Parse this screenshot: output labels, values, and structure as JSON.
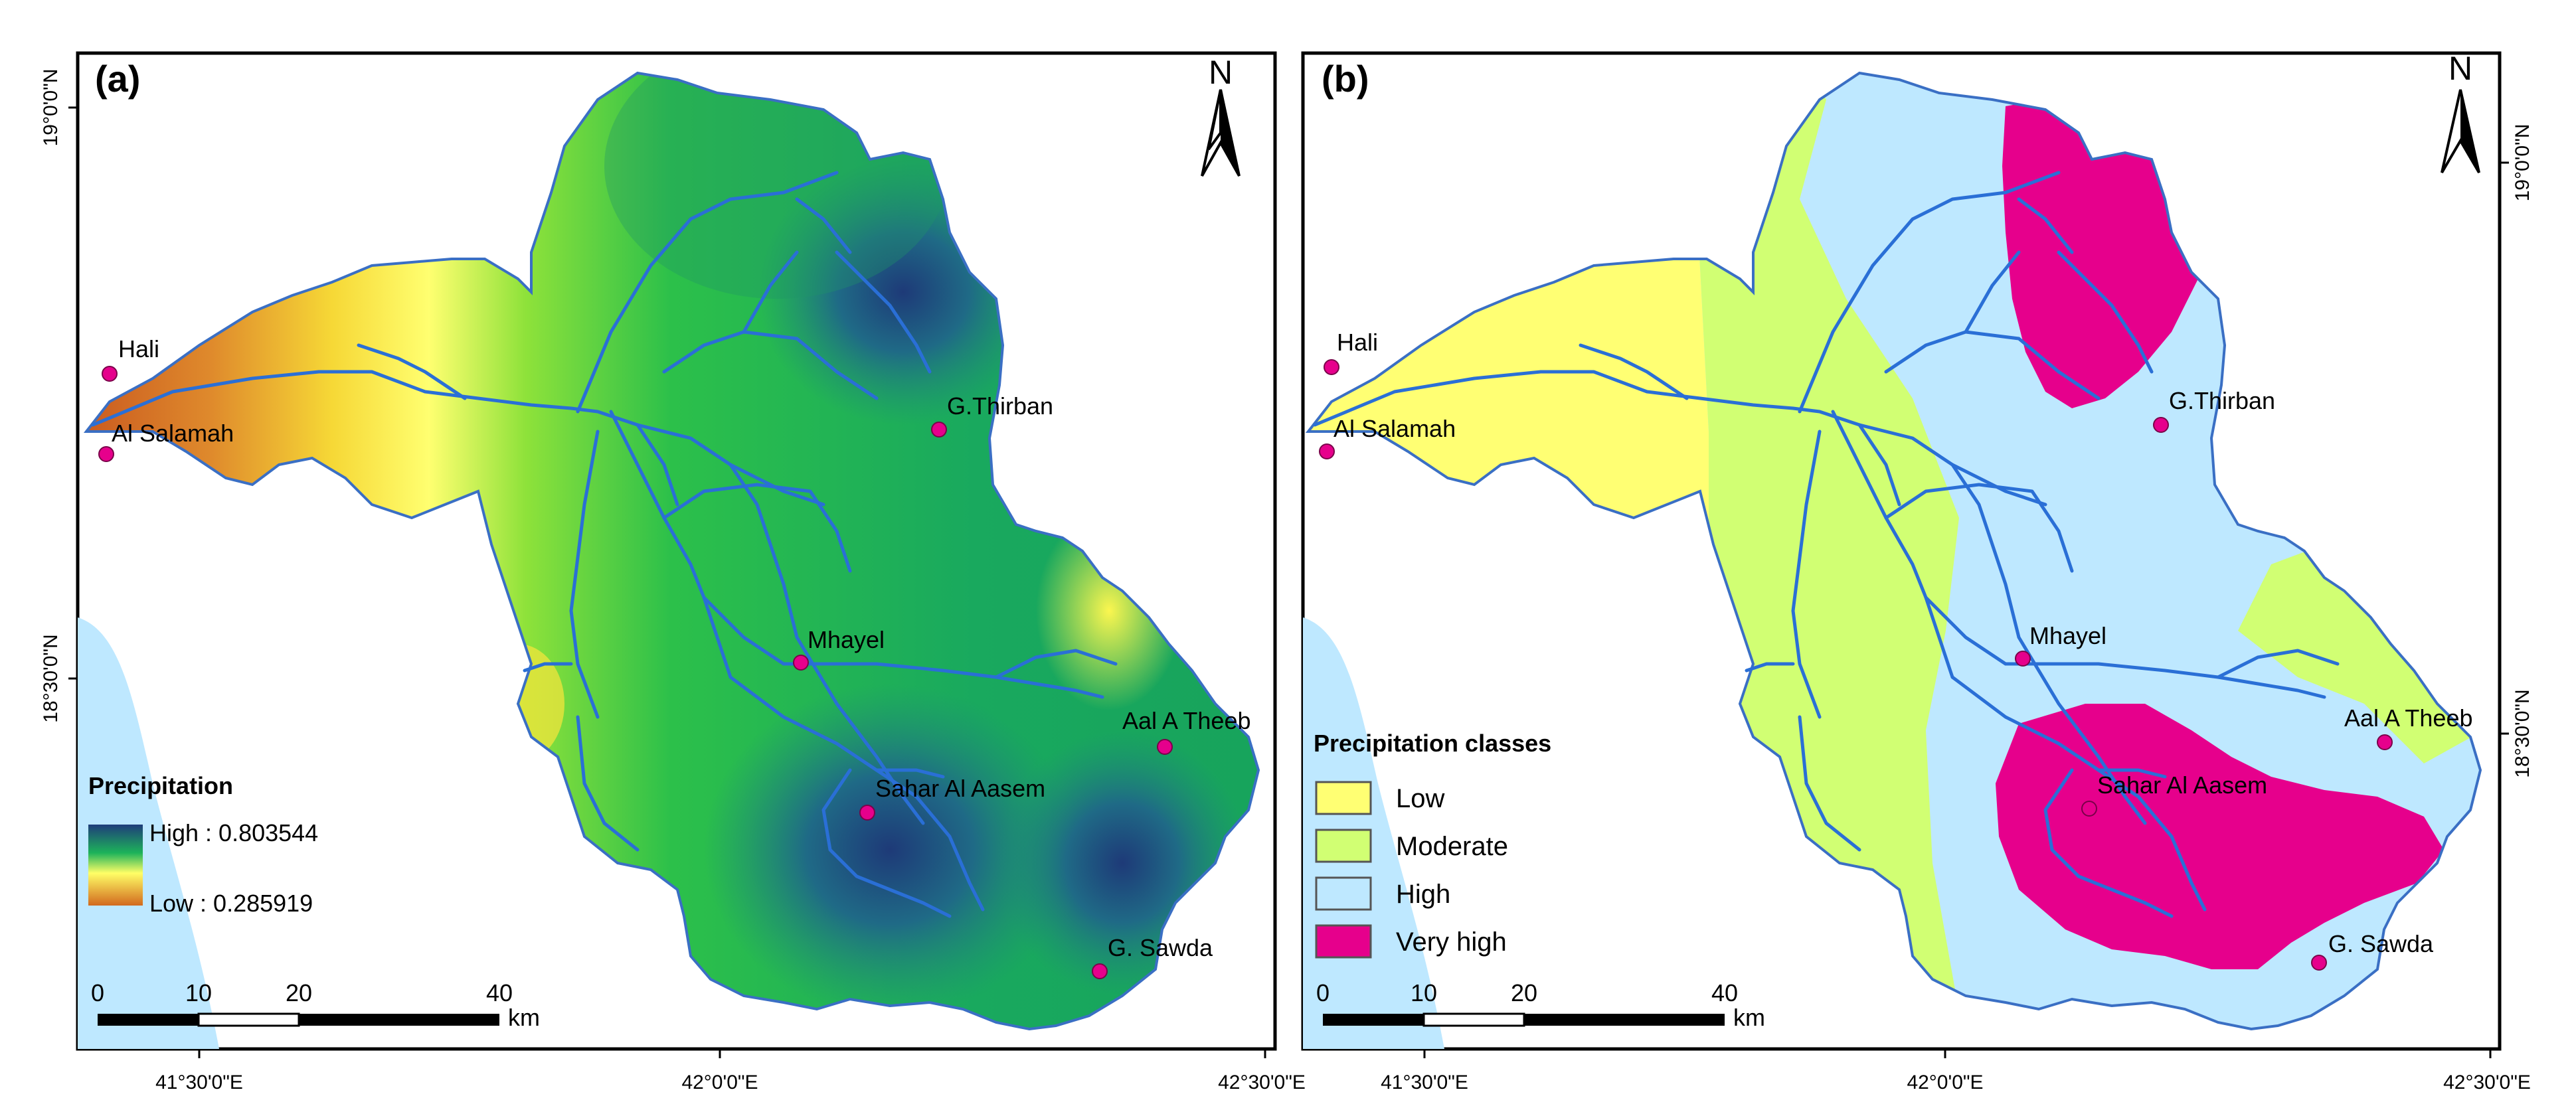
{
  "panels": [
    {
      "id": "a",
      "label": "(a)",
      "north": "N",
      "lat_ticks": [
        "19°0'0\"N",
        "18°30'0\"N"
      ],
      "lon_ticks": [
        "41°30'0\"E",
        "42°0'0\"E",
        "42°30'0\"E"
      ],
      "places": [
        "Hali",
        "Al Salamah",
        "G.Thirban",
        "Mhayel",
        "Aal A Theeb",
        "Sahar Al Aasem",
        "G. Sawda"
      ],
      "legend": {
        "title": "Precipitation",
        "high": "High : 0.803544",
        "low": "Low : 0.285919"
      },
      "scalebar": {
        "ticks": [
          "0",
          "10",
          "20",
          "40"
        ],
        "unit": "km"
      }
    },
    {
      "id": "b",
      "label": "(b)",
      "north": "N",
      "lat_ticks": [
        "19°0'0\"N",
        "18°30'0\"N"
      ],
      "lon_ticks": [
        "41°30'0\"E",
        "42°0'0\"E",
        "42°30'0\"E"
      ],
      "places": [
        "Hali",
        "Al Salamah",
        "G.Thirban",
        "Mhayel",
        "Aal A Theeb",
        "Sahar Al Aasem",
        "G. Sawda"
      ],
      "legend": {
        "title": "Precipitation classes",
        "classes": [
          {
            "label": "Low",
            "color": "#ffff73"
          },
          {
            "label": "Moderate",
            "color": "#d1ff73"
          },
          {
            "label": "High",
            "color": "#bee8ff"
          },
          {
            "label": "Very high",
            "color": "#e6008c"
          }
        ]
      },
      "scalebar": {
        "ticks": [
          "0",
          "10",
          "20",
          "40"
        ],
        "unit": "km"
      }
    }
  ],
  "colors": {
    "river": "#2a6fd6",
    "sea": "#bee8ff",
    "boundary": "#3a6fc4",
    "place_marker": "#e6008c",
    "ramp_high": "#1f3d7a",
    "ramp_mid": "#1db35a",
    "ramp_yellow": "#ffff66",
    "ramp_low": "#d2691e"
  }
}
